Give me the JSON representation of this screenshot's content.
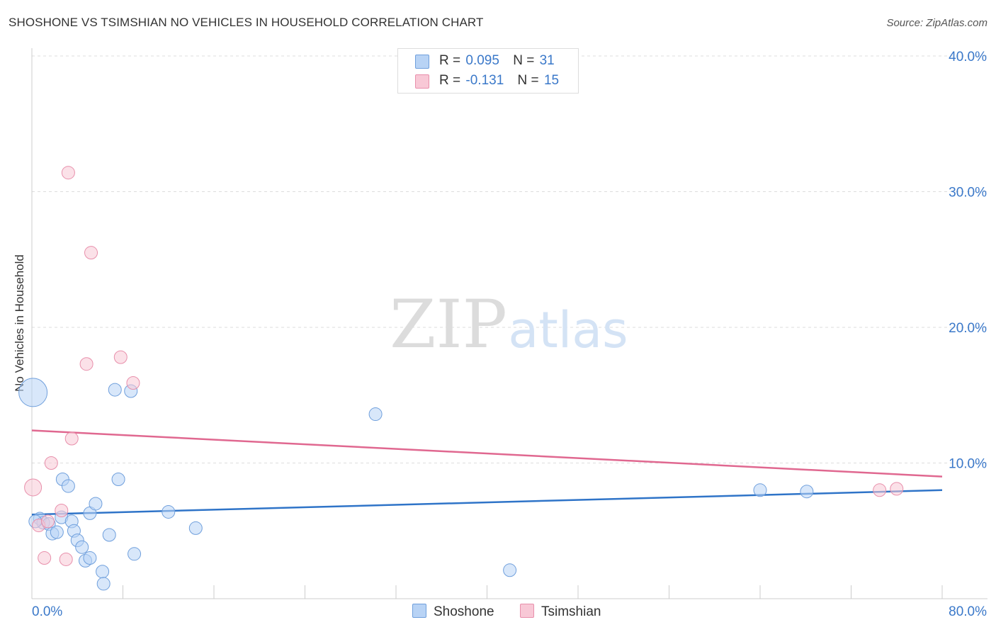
{
  "title": "SHOSHONE VS TSIMSHIAN NO VEHICLES IN HOUSEHOLD CORRELATION CHART",
  "source": "Source: ZipAtlas.com",
  "watermark": {
    "zip": "ZIP",
    "atlas": "atlas"
  },
  "legend": {
    "items": [
      {
        "r_label": "R =",
        "r_value": "0.095",
        "n_label": "N =",
        "n_value": "31"
      },
      {
        "r_label": "R =",
        "r_value": "-0.131",
        "n_label": "N =",
        "n_value": "15"
      }
    ]
  },
  "colors": {
    "shoshone_fill": "#b8d3f5",
    "shoshone_stroke": "#6f9fdc",
    "shoshone_line": "#2f74c8",
    "tsimshian_fill": "#f8c8d6",
    "tsimshian_stroke": "#e88fab",
    "tsimshian_line": "#e06890",
    "tick_label": "#3a78c9",
    "grid": "#dddddd"
  },
  "chart_data": {
    "type": "scatter",
    "title": "SHOSHONE VS TSIMSHIAN NO VEHICLES IN HOUSEHOLD CORRELATION CHART",
    "xlabel": "",
    "ylabel": "No Vehicles in Household",
    "xlim": [
      0,
      80
    ],
    "ylim": [
      0,
      40
    ],
    "x_tick_labels": [
      "0.0%",
      "80.0%"
    ],
    "y_ticks": [
      10,
      20,
      30,
      40
    ],
    "y_tick_labels": [
      "10.0%",
      "20.0%",
      "30.0%",
      "40.0%"
    ],
    "legend_position": "bottom-center",
    "series": [
      {
        "name": "Shoshone",
        "r": 0.095,
        "n": 31,
        "trend": {
          "x": [
            0,
            80
          ],
          "y": [
            6.2,
            8.0
          ]
        },
        "points": [
          {
            "x": 0.1,
            "y": 15.2,
            "size": "large"
          },
          {
            "x": 0.7,
            "y": 5.9
          },
          {
            "x": 1.0,
            "y": 5.6
          },
          {
            "x": 1.5,
            "y": 5.5
          },
          {
            "x": 1.8,
            "y": 4.8
          },
          {
            "x": 2.2,
            "y": 4.9
          },
          {
            "x": 2.6,
            "y": 6.0
          },
          {
            "x": 2.7,
            "y": 8.8
          },
          {
            "x": 3.2,
            "y": 8.3
          },
          {
            "x": 3.5,
            "y": 5.7
          },
          {
            "x": 3.7,
            "y": 5.0
          },
          {
            "x": 4.0,
            "y": 4.3
          },
          {
            "x": 4.4,
            "y": 3.8
          },
          {
            "x": 4.7,
            "y": 2.8
          },
          {
            "x": 5.1,
            "y": 3.0
          },
          {
            "x": 5.1,
            "y": 6.3
          },
          {
            "x": 5.6,
            "y": 7.0
          },
          {
            "x": 6.2,
            "y": 2.0
          },
          {
            "x": 6.3,
            "y": 1.1
          },
          {
            "x": 6.8,
            "y": 4.7
          },
          {
            "x": 7.3,
            "y": 15.4
          },
          {
            "x": 7.6,
            "y": 8.8
          },
          {
            "x": 8.7,
            "y": 15.3
          },
          {
            "x": 9.0,
            "y": 3.3
          },
          {
            "x": 12.0,
            "y": 6.4
          },
          {
            "x": 14.4,
            "y": 5.2
          },
          {
            "x": 30.2,
            "y": 13.6
          },
          {
            "x": 42.0,
            "y": 2.1
          },
          {
            "x": 64.0,
            "y": 8.0
          },
          {
            "x": 68.1,
            "y": 7.9
          },
          {
            "x": 0.3,
            "y": 5.7
          }
        ]
      },
      {
        "name": "Tsimshian",
        "r": -0.131,
        "n": 15,
        "trend": {
          "x": [
            0,
            80
          ],
          "y": [
            12.4,
            9.0
          ]
        },
        "points": [
          {
            "x": 0.1,
            "y": 8.2,
            "size": "medium"
          },
          {
            "x": 0.6,
            "y": 5.4
          },
          {
            "x": 1.1,
            "y": 3.0
          },
          {
            "x": 1.4,
            "y": 5.7
          },
          {
            "x": 1.7,
            "y": 10.0
          },
          {
            "x": 2.6,
            "y": 6.5
          },
          {
            "x": 3.0,
            "y": 2.9
          },
          {
            "x": 3.2,
            "y": 31.4
          },
          {
            "x": 3.5,
            "y": 11.8
          },
          {
            "x": 4.8,
            "y": 17.3
          },
          {
            "x": 5.2,
            "y": 25.5
          },
          {
            "x": 7.8,
            "y": 17.8
          },
          {
            "x": 8.9,
            "y": 15.9
          },
          {
            "x": 74.5,
            "y": 8.0
          },
          {
            "x": 76.0,
            "y": 8.1
          }
        ]
      }
    ]
  }
}
